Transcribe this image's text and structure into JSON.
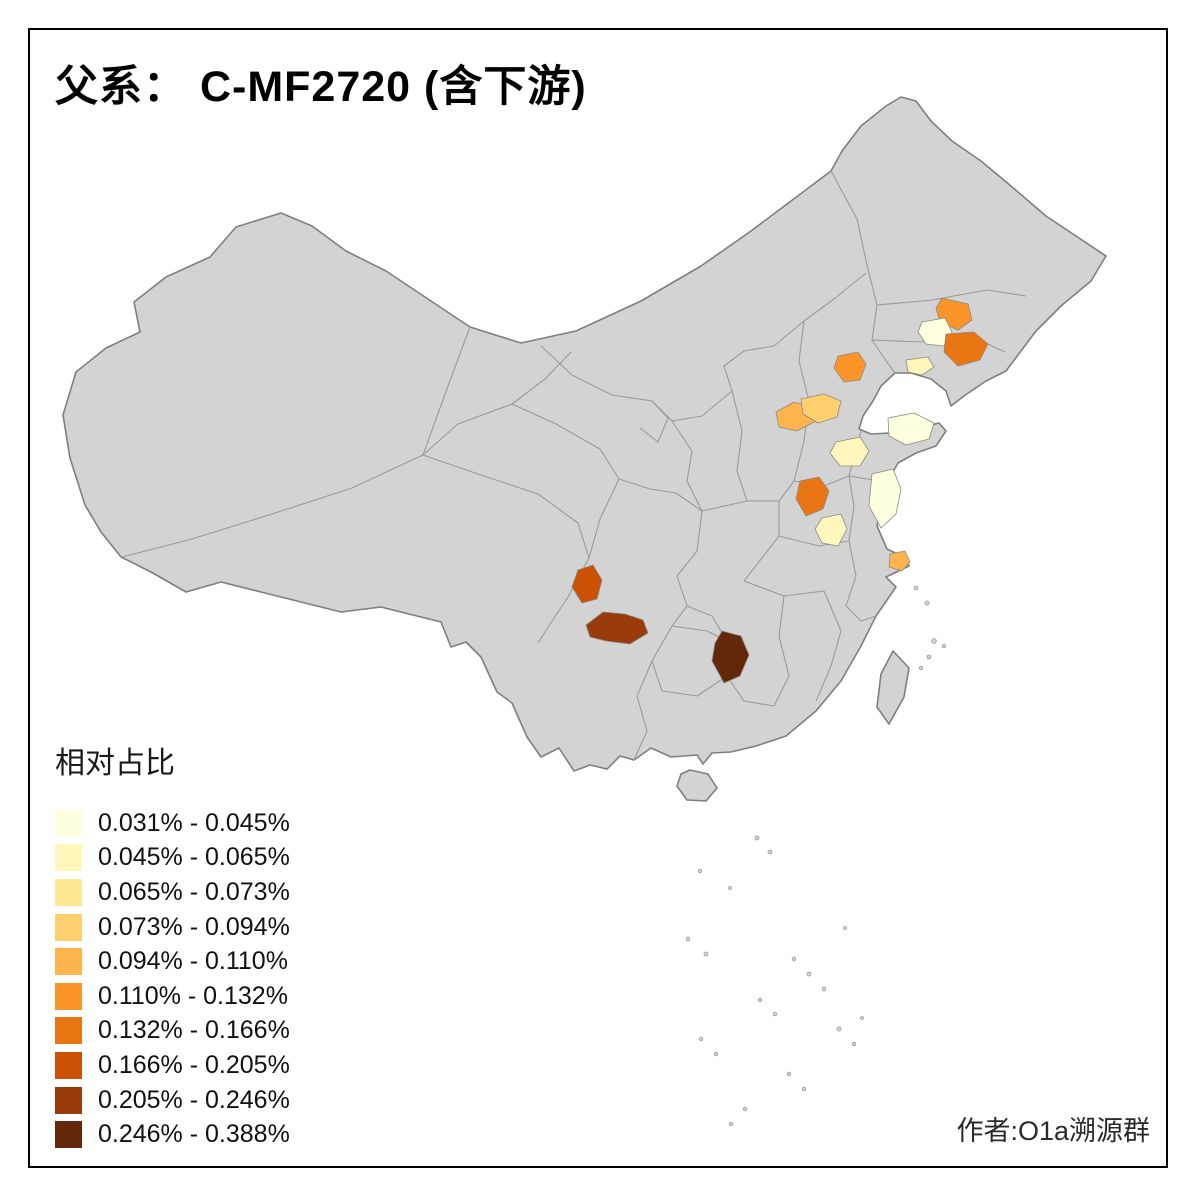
{
  "title": "父系： C-MF2720 (含下游)",
  "attribution": "作者:O1a溯源群",
  "legend": {
    "title": "相对占比",
    "bins": [
      {
        "label": "0.031% - 0.045%",
        "color": "#FFFFE0"
      },
      {
        "label": "0.045% - 0.065%",
        "color": "#FFF6BC"
      },
      {
        "label": "0.065% - 0.073%",
        "color": "#FEE793"
      },
      {
        "label": "0.073% - 0.094%",
        "color": "#FED16E"
      },
      {
        "label": "0.094% - 0.110%",
        "color": "#FDB44C"
      },
      {
        "label": "0.110% - 0.132%",
        "color": "#FB9527"
      },
      {
        "label": "0.132% - 0.166%",
        "color": "#E97612"
      },
      {
        "label": "0.166% - 0.205%",
        "color": "#CC5104"
      },
      {
        "label": "0.205% - 0.246%",
        "color": "#9A3C0A"
      },
      {
        "label": "0.246% - 0.388%",
        "color": "#632709"
      }
    ]
  },
  "map": {
    "land_color": "#D3D3D3",
    "border_color": "#7F7F7F",
    "sea_color": "#FFFFFF",
    "regions": [
      {
        "id": "region-01",
        "bin": "0.110% - 0.132%",
        "color": "#FB9527"
      },
      {
        "id": "region-02",
        "bin": "0.031% - 0.045%",
        "color": "#FFFFE0"
      },
      {
        "id": "region-03",
        "bin": "0.132% - 0.166%",
        "color": "#E97612"
      },
      {
        "id": "region-04",
        "bin": "0.110% - 0.132%",
        "color": "#FB9527"
      },
      {
        "id": "region-05",
        "bin": "0.045% - 0.065%",
        "color": "#FFF6BC"
      },
      {
        "id": "region-06",
        "bin": "0.094% - 0.110%",
        "color": "#FDB44C"
      },
      {
        "id": "region-07",
        "bin": "0.073% - 0.094%",
        "color": "#FED16E"
      },
      {
        "id": "region-08",
        "bin": "0.031% - 0.045%",
        "color": "#FFFFE0"
      },
      {
        "id": "region-09",
        "bin": "0.045% - 0.065%",
        "color": "#FFF6BC"
      },
      {
        "id": "region-10",
        "bin": "0.031% - 0.045%",
        "color": "#FFFFE0"
      },
      {
        "id": "region-11",
        "bin": "0.132% - 0.166%",
        "color": "#E97612"
      },
      {
        "id": "region-12",
        "bin": "0.045% - 0.065%",
        "color": "#FFF6BC"
      },
      {
        "id": "region-13",
        "bin": "0.094% - 0.110%",
        "color": "#FDB44C"
      },
      {
        "id": "region-14",
        "bin": "0.166% - 0.205%",
        "color": "#CC5104"
      },
      {
        "id": "region-15",
        "bin": "0.205% - 0.246%",
        "color": "#9A3C0A"
      },
      {
        "id": "region-16",
        "bin": "0.246% - 0.388%",
        "color": "#632709"
      }
    ]
  }
}
